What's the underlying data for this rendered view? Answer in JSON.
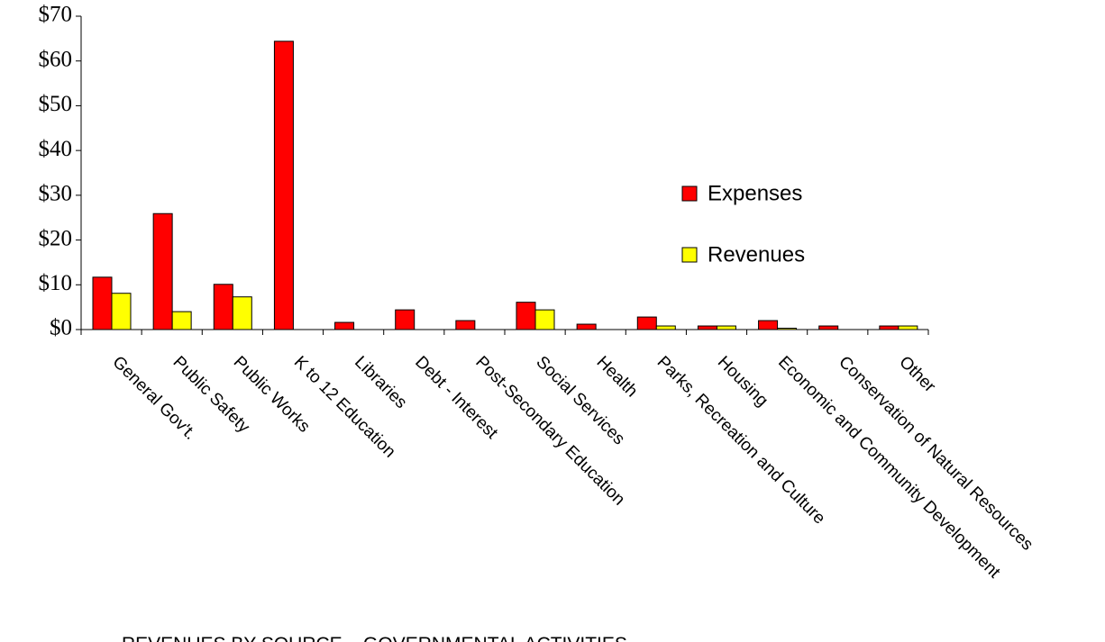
{
  "chart_data": {
    "type": "bar",
    "caption": "REVENUES BY SOURCE – GOVERNMENTAL ACTIVITIES",
    "categories": [
      "General Gov't.",
      "Public Safety",
      "Public Works",
      "K to 12 Education",
      "Libraries",
      "Debt - Interest",
      "Post-Secondary Education",
      "Social Services",
      "Health",
      "Parks, Recreation and Culture",
      "Housing",
      "Economic and Community Development",
      "Conservation of Natural Resources",
      "Other"
    ],
    "series": [
      {
        "name": "Expenses",
        "color": "#ff0000",
        "values": [
          11.7,
          25.9,
          10.1,
          64.4,
          1.6,
          4.4,
          2.0,
          6.1,
          1.2,
          2.8,
          0.8,
          2.0,
          0.8,
          0.8
        ]
      },
      {
        "name": "Revenues",
        "color": "#ffff00",
        "values": [
          8.1,
          4.0,
          7.3,
          0,
          0,
          0,
          0,
          4.4,
          0,
          0.8,
          0.8,
          0.3,
          0,
          0.8
        ]
      }
    ],
    "ylim": [
      0,
      70
    ],
    "yticks": [
      {
        "value": 0,
        "label": "$0"
      },
      {
        "value": 10,
        "label": "$10"
      },
      {
        "value": 20,
        "label": "$20"
      },
      {
        "value": 30,
        "label": "$30"
      },
      {
        "value": 40,
        "label": "$40"
      },
      {
        "value": 50,
        "label": "$50"
      },
      {
        "value": 60,
        "label": "$60"
      },
      {
        "value": 70,
        "label": "$70"
      }
    ],
    "grid": false
  }
}
